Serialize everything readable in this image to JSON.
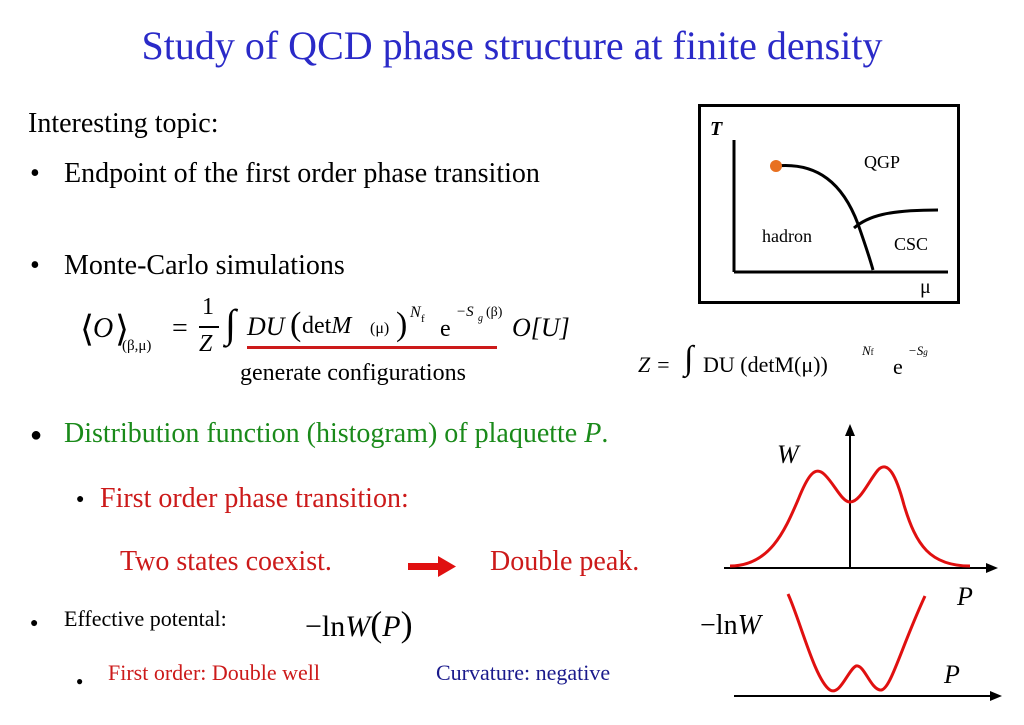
{
  "colors": {
    "title": "#2a2ac8",
    "green": "#1a8a1a",
    "red": "#cc1a1a",
    "navy": "#1a1a8c",
    "orange": "#e87020",
    "curve": "#e01010"
  },
  "title": "Study of QCD phase structure at finite density",
  "intro": "Interesting topic:",
  "bullets": {
    "b1": "Endpoint of the first order phase transition",
    "b2": "Monte-Carlo simulations",
    "b3_main": "Distribution function (histogram) of plaquette ",
    "b3_var": "P",
    "b3_end": ".",
    "b3_sub": "First order phase transition:",
    "coexist": "Two states coexist.",
    "double_peak": "Double peak.",
    "b4": "Effective potental:",
    "b4_sub_red": "First order: Double well",
    "b4_sub_navy": "Curvature: negative"
  },
  "formula": {
    "expectation": "O",
    "subscript": "(β,μ)",
    "one": "1",
    "Z": "Z",
    "integrand": "DU(detM(μ))",
    "Nf": "N",
    "f": "f",
    "exp": "e",
    "Sg": "−S",
    "g": "g",
    "beta": "(β)",
    "O_U": "O[U]",
    "annotation": "generate configurations",
    "z_def_lhs": "Z =",
    "z_def_rhs": "DU (detM(μ))",
    "z_exp": "e",
    "z_exp_sup": "−S"
  },
  "phase_diagram": {
    "axis_T": "T",
    "axis_mu": "μ",
    "qgp": "QGP",
    "hadron": "hadron",
    "csc": "CSC"
  },
  "histogram": {
    "y_label": "W",
    "x_label": "P"
  },
  "potential": {
    "y_label": "−ln W",
    "x_label": "P",
    "expr": "−ln W(P)"
  }
}
